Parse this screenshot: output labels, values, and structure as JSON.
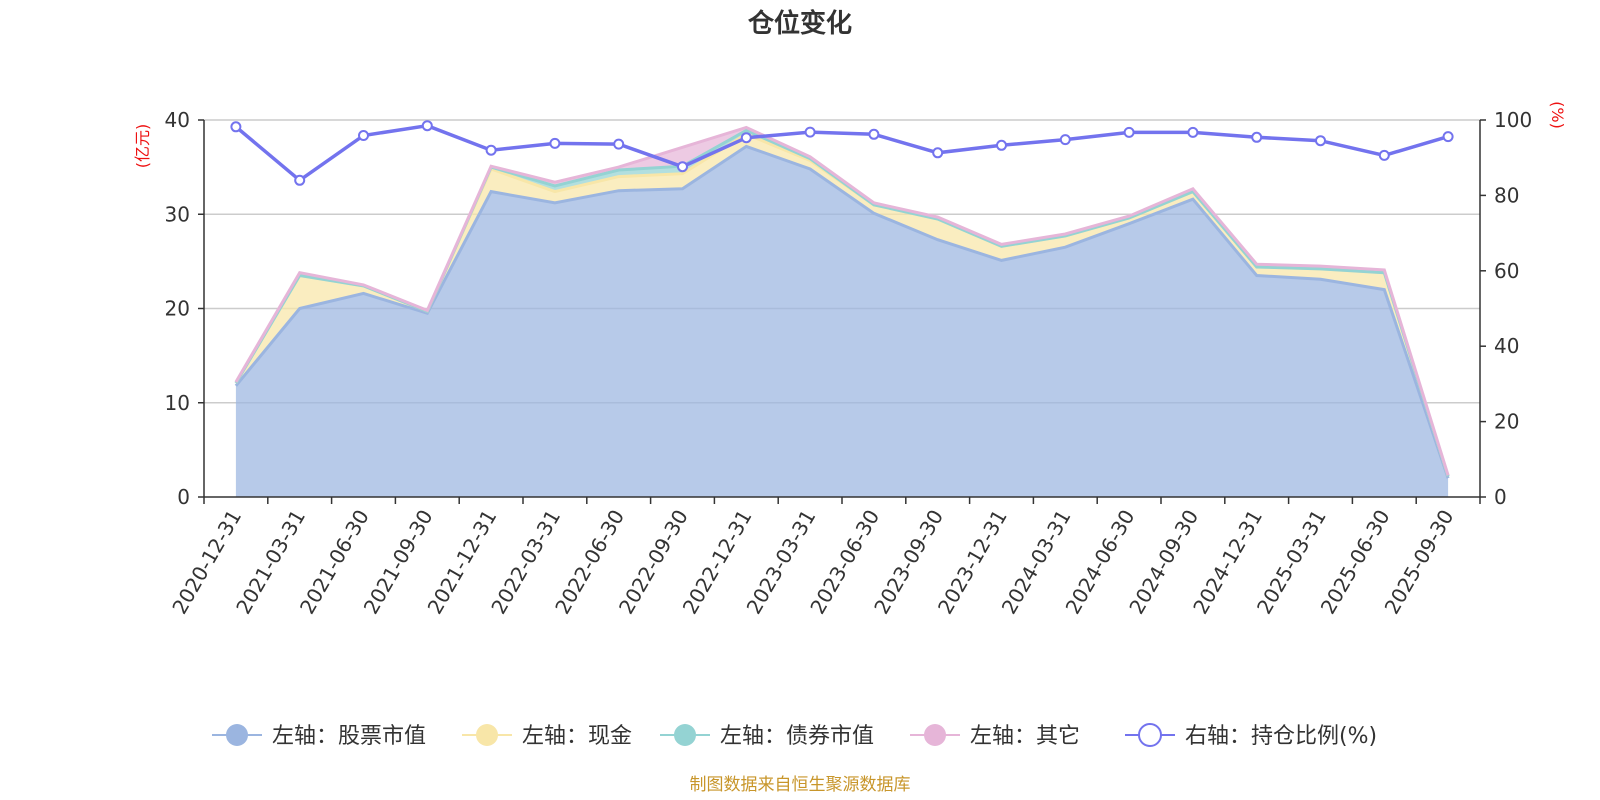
{
  "title": "仓位变化",
  "source_note": "制图数据来自恒生聚源数据库",
  "chart_data": {
    "type": "area",
    "x": [
      "2020-12-31",
      "2021-03-31",
      "2021-06-30",
      "2021-09-30",
      "2021-12-31",
      "2022-03-31",
      "2022-06-30",
      "2022-09-30",
      "2022-12-31",
      "2023-03-31",
      "2023-06-30",
      "2023-09-30",
      "2023-12-31",
      "2024-03-31",
      "2024-06-30",
      "2024-09-30",
      "2024-12-31",
      "2025-03-31",
      "2025-06-30",
      "2025-09-30"
    ],
    "left_axis": {
      "unit": "(亿元)",
      "ylim": [
        0,
        40
      ],
      "ticks": [
        "0",
        "10",
        "20",
        "30",
        "40"
      ]
    },
    "right_axis": {
      "unit": "(%)",
      "ylim": [
        0,
        100
      ],
      "ticks": [
        "0",
        "20",
        "40",
        "60",
        "80",
        "100"
      ]
    },
    "grid": true,
    "legend_position": "bottom",
    "series": [
      {
        "name": "左轴：股票市值",
        "axis": "left",
        "kind": "stacked-area",
        "color": "#9bb5e0",
        "values": [
          11.8,
          20.0,
          21.6,
          19.5,
          32.4,
          31.2,
          32.5,
          32.7,
          37.2,
          34.8,
          30.1,
          27.3,
          25.1,
          26.5,
          29.0,
          31.6,
          23.5,
          23.1,
          22.0,
          2.0
        ]
      },
      {
        "name": "左轴：现金",
        "axis": "left",
        "kind": "stacked-area",
        "color": "#f8e6a8",
        "values": [
          0.3,
          3.5,
          0.8,
          0.2,
          2.4,
          1.2,
          1.5,
          1.6,
          1.3,
          0.9,
          0.9,
          2.2,
          1.5,
          1.2,
          0.6,
          0.8,
          0.9,
          1.1,
          1.8,
          0.2
        ]
      },
      {
        "name": "左轴：债券市值",
        "axis": "left",
        "kind": "stacked-area",
        "color": "#94d3d3",
        "values": [
          0.0,
          0.0,
          0.0,
          0.0,
          0.2,
          0.6,
          0.7,
          0.8,
          0.4,
          0.2,
          0.0,
          0.0,
          0.0,
          0.0,
          0.0,
          0.0,
          0.0,
          0.0,
          0.0,
          0.0
        ]
      },
      {
        "name": "左轴：其它",
        "axis": "left",
        "kind": "stacked-area",
        "color": "#e6b5d8",
        "values": [
          0.1,
          0.3,
          0.1,
          0.1,
          0.1,
          0.4,
          0.3,
          2.0,
          0.3,
          0.2,
          0.2,
          0.2,
          0.2,
          0.2,
          0.2,
          0.3,
          0.3,
          0.3,
          0.3,
          0.1
        ]
      },
      {
        "name": "右轴：持仓比例(%)",
        "axis": "right",
        "kind": "line",
        "color": "#7373ee",
        "values": [
          98.2,
          84.0,
          95.9,
          98.5,
          92.0,
          93.8,
          93.6,
          87.6,
          95.3,
          96.8,
          96.2,
          91.3,
          93.3,
          94.8,
          96.7,
          96.7,
          95.4,
          94.5,
          90.6,
          95.6
        ]
      }
    ]
  }
}
